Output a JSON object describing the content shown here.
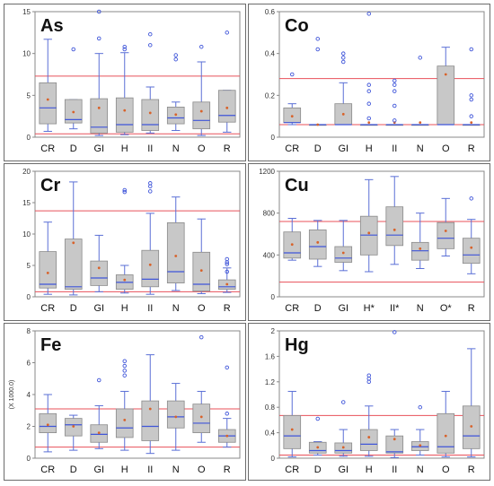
{
  "chart_data": [
    {
      "type": "box",
      "element": "As",
      "ylim": [
        0,
        15
      ],
      "yticks": [
        0,
        5,
        10,
        15
      ],
      "ylabel": "",
      "categories": [
        "CR",
        "D",
        "GI",
        "H",
        "II",
        "N",
        "O",
        "R"
      ],
      "boxes": [
        {
          "min": 0.7,
          "q1": 1.6,
          "median": 3.5,
          "q3": 6.5,
          "max": 11.7,
          "mean": 4.5
        },
        {
          "min": 1.0,
          "q1": 1.7,
          "median": 2.1,
          "q3": 4.5,
          "max": 4.5,
          "mean": 3.0
        },
        {
          "min": 0.2,
          "q1": 0.5,
          "median": 1.2,
          "q3": 4.6,
          "max": 10.0,
          "mean": 3.5
        },
        {
          "min": 0.3,
          "q1": 0.6,
          "median": 1.5,
          "q3": 4.7,
          "max": 10.1,
          "mean": 3.2
        },
        {
          "min": 0.5,
          "q1": 0.8,
          "median": 1.5,
          "q3": 4.5,
          "max": 6.0,
          "mean": 2.9
        },
        {
          "min": 0.8,
          "q1": 1.6,
          "median": 2.3,
          "q3": 3.6,
          "max": 4.2,
          "mean": 2.7
        },
        {
          "min": 0.2,
          "q1": 1.0,
          "median": 2.0,
          "q3": 4.2,
          "max": 9.0,
          "mean": 3.1
        },
        {
          "min": 0.6,
          "q1": 1.8,
          "median": 2.6,
          "q3": 5.6,
          "max": 5.6,
          "mean": 3.5
        }
      ],
      "outliers": [
        [],
        [
          10.5
        ],
        [
          15,
          11.8
        ],
        [
          10.8,
          10.5
        ],
        [
          12.3,
          11
        ],
        [
          9.8,
          9.3
        ],
        [
          10.8
        ],
        [
          12.5
        ]
      ],
      "ref_lines": [
        7.3,
        0.4
      ]
    },
    {
      "type": "box",
      "element": "Co",
      "ylim": [
        0,
        0.6
      ],
      "yticks": [
        0,
        0.2,
        0.4,
        0.6
      ],
      "yticklabels": [
        "0",
        "0.2",
        "0.4",
        "0.6"
      ],
      "categories": [
        "CR",
        "D",
        "GI",
        "H",
        "II",
        "N",
        "O",
        "R"
      ],
      "boxes": [
        {
          "min": 0.06,
          "q1": 0.07,
          "median": 0.07,
          "q3": 0.14,
          "max": 0.16,
          "mean": 0.1
        },
        {
          "min": 0.06,
          "q1": 0.06,
          "median": 0.06,
          "q3": 0.06,
          "max": 0.06,
          "mean": 0.06
        },
        {
          "min": 0.06,
          "q1": 0.06,
          "median": 0.06,
          "q3": 0.16,
          "max": 0.26,
          "mean": 0.11
        },
        {
          "min": 0.06,
          "q1": 0.06,
          "median": 0.06,
          "q3": 0.06,
          "max": 0.06,
          "mean": 0.07
        },
        {
          "min": 0.06,
          "q1": 0.06,
          "median": 0.06,
          "q3": 0.06,
          "max": 0.06,
          "mean": 0.07
        },
        {
          "min": 0.06,
          "q1": 0.06,
          "median": 0.06,
          "q3": 0.06,
          "max": 0.06,
          "mean": 0.07
        },
        {
          "min": 0.06,
          "q1": 0.06,
          "median": 0.06,
          "q3": 0.34,
          "max": 0.43,
          "mean": 0.3
        },
        {
          "min": 0.06,
          "q1": 0.06,
          "median": 0.06,
          "q3": 0.06,
          "max": 0.06,
          "mean": 0.07
        }
      ],
      "outliers": [
        [
          0.3
        ],
        [
          0.47,
          0.42
        ],
        [
          0.4,
          0.38,
          0.36
        ],
        [
          0.59,
          0.25,
          0.22,
          0.16,
          0.09
        ],
        [
          0.27,
          0.25,
          0.22,
          0.15,
          0.08
        ],
        [
          0.38
        ],
        [],
        [
          0.42,
          0.2,
          0.18,
          0.1
        ]
      ],
      "ref_lines": [
        0.28,
        0.06
      ]
    },
    {
      "type": "box",
      "element": "Cr",
      "ylim": [
        0,
        20
      ],
      "yticks": [
        0,
        5,
        10,
        15,
        20
      ],
      "categories": [
        "CR",
        "D",
        "GI",
        "H",
        "II",
        "N",
        "O",
        "R"
      ],
      "boxes": [
        {
          "min": 0.4,
          "q1": 1.4,
          "median": 2.0,
          "q3": 7.2,
          "max": 11.9,
          "mean": 3.8
        },
        {
          "min": 0.3,
          "q1": 1.2,
          "median": 1.6,
          "q3": 9.2,
          "max": 18.3,
          "mean": 8.6
        },
        {
          "min": 0.8,
          "q1": 1.8,
          "median": 3.0,
          "q3": 5.7,
          "max": 9.8,
          "mean": 4.6
        },
        {
          "min": 0.6,
          "q1": 1.2,
          "median": 2.3,
          "q3": 3.5,
          "max": 5.0,
          "mean": 2.7
        },
        {
          "min": 0.4,
          "q1": 1.6,
          "median": 2.8,
          "q3": 7.4,
          "max": 13.3,
          "mean": 5.1
        },
        {
          "min": 1.0,
          "q1": 2.2,
          "median": 4.0,
          "q3": 11.8,
          "max": 15.9,
          "mean": 6.5
        },
        {
          "min": 0.5,
          "q1": 0.9,
          "median": 2.0,
          "q3": 7.1,
          "max": 12.4,
          "mean": 4.2
        },
        {
          "min": 0.7,
          "q1": 1.2,
          "median": 1.6,
          "q3": 2.7,
          "max": 4.6,
          "mean": 2.0
        }
      ],
      "outliers": [
        [],
        [],
        [],
        [
          17.0,
          16.7
        ],
        [
          18.1,
          17.6,
          16.8
        ],
        [],
        [],
        [
          6.0,
          5.5,
          5.2,
          4.0
        ]
      ],
      "ref_lines": [
        13.7,
        0.8
      ]
    },
    {
      "type": "box",
      "element": "Cu",
      "ylim": [
        0,
        1200
      ],
      "yticks": [
        0,
        400,
        800,
        1200
      ],
      "categories": [
        "CR",
        "D",
        "GI",
        "H*",
        "II*",
        "N",
        "O*",
        "R"
      ],
      "boxes": [
        {
          "min": 350,
          "q1": 370,
          "median": 420,
          "q3": 620,
          "max": 750,
          "mean": 500
        },
        {
          "min": 290,
          "q1": 360,
          "median": 480,
          "q3": 640,
          "max": 730,
          "mean": 520
        },
        {
          "min": 250,
          "q1": 330,
          "median": 370,
          "q3": 480,
          "max": 730,
          "mean": 420
        },
        {
          "min": 240,
          "q1": 400,
          "median": 590,
          "q3": 770,
          "max": 1120,
          "mean": 610
        },
        {
          "min": 310,
          "q1": 490,
          "median": 590,
          "q3": 860,
          "max": 1150,
          "mean": 640
        },
        {
          "min": 270,
          "q1": 350,
          "median": 440,
          "q3": 520,
          "max": 800,
          "mean": 460
        },
        {
          "min": 390,
          "q1": 460,
          "median": 560,
          "q3": 710,
          "max": 940,
          "mean": 630
        },
        {
          "min": 220,
          "q1": 320,
          "median": 400,
          "q3": 560,
          "max": 740,
          "mean": 470
        }
      ],
      "outliers": [
        [],
        [],
        [],
        [],
        [],
        [],
        [],
        [
          940
        ]
      ],
      "ref_lines": [
        720,
        140
      ]
    },
    {
      "type": "box",
      "element": "Fe",
      "ylabel": "(X 1000.0)",
      "ylim": [
        0,
        8
      ],
      "yticks": [
        0,
        2,
        4,
        6,
        8
      ],
      "categories": [
        "CR",
        "D",
        "GI",
        "H",
        "II",
        "N",
        "O",
        "R"
      ],
      "boxes": [
        {
          "min": 0.4,
          "q1": 1.6,
          "median": 2.0,
          "q3": 2.8,
          "max": 4.0,
          "mean": 2.1
        },
        {
          "min": 0.5,
          "q1": 1.4,
          "median": 2.1,
          "q3": 2.5,
          "max": 2.7,
          "mean": 2.0
        },
        {
          "min": 0.6,
          "q1": 1.0,
          "median": 1.5,
          "q3": 2.1,
          "max": 3.3,
          "mean": 1.6
        },
        {
          "min": 0.5,
          "q1": 1.3,
          "median": 1.9,
          "q3": 3.1,
          "max": 4.2,
          "mean": 2.4
        },
        {
          "min": 0.3,
          "q1": 1.1,
          "median": 2.0,
          "q3": 3.6,
          "max": 6.5,
          "mean": 3.1
        },
        {
          "min": 0.5,
          "q1": 1.9,
          "median": 2.6,
          "q3": 3.6,
          "max": 4.7,
          "mean": 2.6
        },
        {
          "min": 1.0,
          "q1": 1.6,
          "median": 2.2,
          "q3": 3.4,
          "max": 4.2,
          "mean": 2.6
        },
        {
          "min": 0.7,
          "q1": 1.0,
          "median": 1.4,
          "q3": 1.8,
          "max": 2.5,
          "mean": 1.4
        }
      ],
      "outliers": [
        [],
        [],
        [
          4.9
        ],
        [
          6.1,
          5.8,
          5.5,
          5.2
        ],
        [],
        [],
        [
          7.6
        ],
        [
          5.7,
          2.8
        ]
      ],
      "ref_lines": [
        3.1,
        0.7
      ]
    },
    {
      "type": "box",
      "element": "Hg",
      "ylim": [
        0,
        2
      ],
      "yticks": [
        0,
        0.4,
        0.8,
        1.2,
        1.6,
        2.0
      ],
      "yticklabels": [
        "0",
        "0.4",
        "0.8",
        "1.2",
        "1.6",
        "2"
      ],
      "categories": [
        "CR",
        "D",
        "GI",
        "H",
        "II",
        "N",
        "O",
        "R"
      ],
      "boxes": [
        {
          "min": 0.02,
          "q1": 0.15,
          "median": 0.35,
          "q3": 0.67,
          "max": 1.05,
          "mean": 0.45
        },
        {
          "min": 0.05,
          "q1": 0.08,
          "median": 0.12,
          "q3": 0.25,
          "max": 0.26,
          "mean": 0.17
        },
        {
          "min": 0.03,
          "q1": 0.08,
          "median": 0.12,
          "q3": 0.24,
          "max": 0.45,
          "mean": 0.17
        },
        {
          "min": 0.03,
          "q1": 0.12,
          "median": 0.22,
          "q3": 0.45,
          "max": 0.82,
          "mean": 0.33
        },
        {
          "min": 0.01,
          "q1": 0.08,
          "median": 0.1,
          "q3": 0.35,
          "max": 0.45,
          "mean": 0.3
        },
        {
          "min": 0.05,
          "q1": 0.12,
          "median": 0.18,
          "q3": 0.26,
          "max": 0.45,
          "mean": 0.2
        },
        {
          "min": 0.02,
          "q1": 0.08,
          "median": 0.18,
          "q3": 0.7,
          "max": 1.05,
          "mean": 0.35
        },
        {
          "min": 0.02,
          "q1": 0.15,
          "median": 0.35,
          "q3": 0.82,
          "max": 1.72,
          "mean": 0.5
        }
      ],
      "outliers": [
        [],
        [
          0.62
        ],
        [
          0.88
        ],
        [
          1.3,
          1.25,
          1.2
        ],
        [
          1.98
        ],
        [
          0.8
        ],
        [],
        []
      ],
      "ref_lines": [
        0.67,
        0.05
      ]
    }
  ]
}
